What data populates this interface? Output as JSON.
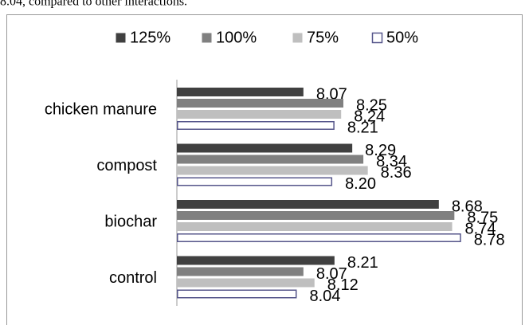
{
  "caption": "8.04, compared to other interactions.",
  "chart_data": {
    "type": "bar",
    "orientation": "horizontal",
    "categories": [
      "chicken manure",
      "compost",
      "biochar",
      "control"
    ],
    "series": [
      {
        "name": "125%",
        "color": "#404040",
        "values": [
          8.07,
          8.29,
          8.68,
          8.21
        ],
        "value_labels": [
          "8.07",
          "8.29",
          "8.68",
          "8.21"
        ]
      },
      {
        "name": "100%",
        "color": "#808080",
        "values": [
          8.25,
          8.34,
          8.75,
          8.07
        ],
        "value_labels": [
          "8.25",
          "8.34",
          "8.75",
          "8.07"
        ]
      },
      {
        "name": "75%",
        "color": "#bfbfbf",
        "values": [
          8.24,
          8.36,
          8.74,
          8.12
        ],
        "value_labels": [
          "8.24",
          "8.36",
          "8.74",
          "8.12"
        ]
      },
      {
        "name": "50%",
        "color": "#ffffff",
        "stroke": "#55558a",
        "values": [
          8.21,
          8.2,
          8.78,
          8.04
        ],
        "value_labels": [
          "8.21",
          "8.20",
          "8.78",
          "8.04"
        ]
      }
    ],
    "xlim": [
      7.5,
      9.0
    ],
    "legend": "top"
  }
}
